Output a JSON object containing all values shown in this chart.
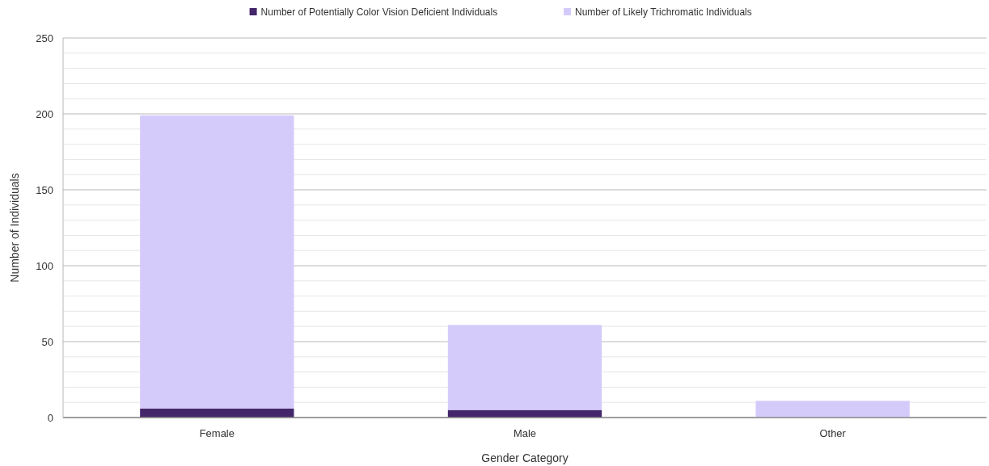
{
  "chart_data": {
    "type": "bar",
    "stacked": true,
    "xlabel": "Gender Category",
    "ylabel": "Number of Individuals",
    "categories": [
      "Female",
      "Male",
      "Other"
    ],
    "series": [
      {
        "name": "Number of Potentially Color Vision Deficient Individuals",
        "color": "#44266a",
        "values": [
          6,
          5,
          0
        ]
      },
      {
        "name": "Number of Likely Trichromatic Individuals",
        "color": "#d5cbfb",
        "values": [
          193,
          56,
          11
        ]
      }
    ],
    "ylim": [
      0,
      250
    ],
    "yticks": [
      0,
      {
        "value": 10,
        "label": null
      },
      {
        "value": 20,
        "label": null
      },
      {
        "value": 30,
        "label": null
      },
      {
        "value": 40,
        "label": null
      },
      50,
      {
        "value": 60,
        "label": null
      },
      {
        "value": 70,
        "label": null
      },
      {
        "value": 80,
        "label": null
      },
      {
        "value": 90,
        "label": null
      },
      100,
      {
        "value": 110,
        "label": null
      },
      {
        "value": 120,
        "label": null
      },
      {
        "value": 130,
        "label": null
      },
      {
        "value": 140,
        "label": null
      },
      150,
      {
        "value": 160,
        "label": null
      },
      {
        "value": 170,
        "label": null
      },
      {
        "value": 180,
        "label": null
      },
      {
        "value": 190,
        "label": null
      },
      200,
      {
        "value": 210,
        "label": null
      },
      {
        "value": 220,
        "label": null
      },
      {
        "value": 230,
        "label": null
      },
      {
        "value": 240,
        "label": null
      },
      250
    ],
    "grid": "y",
    "legend": "top"
  }
}
